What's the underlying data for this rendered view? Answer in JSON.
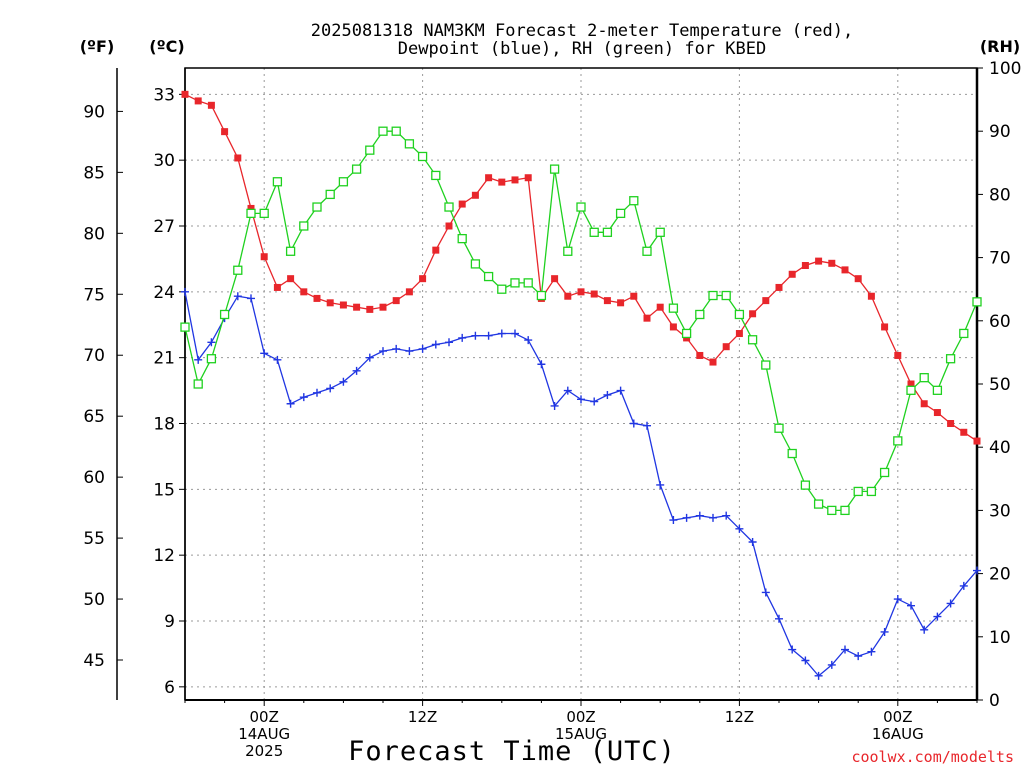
{
  "chart_data": {
    "type": "line",
    "title_line1": "2025081318 NAM3KM Forecast 2-meter Temperature (red),",
    "title_line2": "Dewpoint (blue), RH (green) for KBED",
    "xlabel": "Forecast Time (UTC)",
    "units": {
      "fahrenheit": "(ºF)",
      "celsius": "(ºC)",
      "rh": "(RH)"
    },
    "credit": "coolwx.com/modelts",
    "x_hours": [
      0,
      1,
      2,
      3,
      4,
      5,
      6,
      7,
      8,
      9,
      10,
      11,
      12,
      13,
      14,
      15,
      16,
      17,
      18,
      19,
      20,
      21,
      22,
      23,
      24,
      25,
      26,
      27,
      28,
      29,
      30,
      31,
      32,
      33,
      34,
      35,
      36,
      37,
      38,
      39,
      40,
      41,
      42,
      43,
      44,
      45,
      46,
      47,
      48,
      49,
      50,
      51,
      52,
      53,
      54,
      55,
      56,
      57,
      58,
      59,
      60
    ],
    "x_hours_note": "hours since 2025-08-13 18Z",
    "x_ticks": [
      {
        "hour": 6,
        "lines": [
          "00Z",
          "14AUG",
          "2025"
        ]
      },
      {
        "hour": 18,
        "lines": [
          "12Z"
        ]
      },
      {
        "hour": 30,
        "lines": [
          "00Z",
          "15AUG"
        ]
      },
      {
        "hour": 42,
        "lines": [
          "12Z"
        ]
      },
      {
        "hour": 54,
        "lines": [
          "00Z",
          "16AUG"
        ]
      }
    ],
    "ylim_c": [
      5.4,
      34.2
    ],
    "yticks_c": [
      6,
      9,
      12,
      15,
      18,
      21,
      24,
      27,
      30,
      33
    ],
    "yticks_f": [
      45,
      50,
      55,
      60,
      65,
      70,
      75,
      80,
      85,
      90
    ],
    "ylim_rh": [
      0,
      100
    ],
    "yticks_rh": [
      0,
      10,
      20,
      30,
      40,
      50,
      60,
      70,
      80,
      90,
      100
    ],
    "grid": true,
    "series": [
      {
        "name": "Temperature (red)",
        "axis": "celsius",
        "color": "#e8262b",
        "marker": "filled-square",
        "values": [
          33.0,
          32.7,
          32.5,
          31.3,
          30.1,
          27.8,
          25.6,
          24.2,
          24.6,
          24.0,
          23.7,
          23.5,
          23.4,
          23.3,
          23.2,
          23.3,
          23.6,
          24.0,
          24.6,
          25.9,
          27.0,
          28.0,
          28.4,
          29.2,
          29.0,
          29.1,
          29.2,
          23.7,
          24.6,
          23.8,
          24.0,
          23.9,
          23.6,
          23.5,
          23.8,
          22.8,
          23.3,
          22.4,
          21.9,
          21.1,
          20.8,
          21.5,
          22.1,
          23.0,
          23.6,
          24.2,
          24.8,
          25.2,
          25.4,
          25.3,
          25.0,
          24.6,
          23.8,
          22.4,
          21.1,
          19.8,
          18.9,
          18.5,
          18.0,
          17.6,
          17.2
        ]
      },
      {
        "name": "Dewpoint (blue)",
        "axis": "celsius",
        "color": "#2036e2",
        "marker": "plus",
        "values": [
          24.0,
          20.9,
          21.7,
          22.8,
          23.8,
          23.7,
          21.2,
          20.9,
          18.9,
          19.2,
          19.4,
          19.6,
          19.9,
          20.4,
          21.0,
          21.3,
          21.4,
          21.3,
          21.4,
          21.6,
          21.7,
          21.9,
          22.0,
          22.0,
          22.1,
          22.1,
          21.8,
          20.7,
          18.8,
          19.5,
          19.1,
          19.0,
          19.3,
          19.5,
          18.0,
          17.9,
          15.2,
          13.6,
          13.7,
          13.8,
          13.7,
          13.8,
          13.2,
          12.6,
          10.3,
          9.1,
          7.7,
          7.2,
          6.5,
          7.0,
          7.7,
          7.4,
          7.6,
          8.5,
          10.0,
          9.7,
          8.6,
          9.2,
          9.8,
          10.6,
          11.3
        ]
      },
      {
        "name": "RH (green)",
        "axis": "rh",
        "color": "#1fd11f",
        "marker": "open-square",
        "values": [
          59,
          50,
          54,
          61,
          68,
          77,
          77,
          82,
          71,
          75,
          78,
          80,
          82,
          84,
          87,
          90,
          90,
          88,
          86,
          83,
          78,
          73,
          69,
          67,
          65,
          66,
          66,
          64,
          84,
          71,
          78,
          74,
          74,
          77,
          79,
          71,
          74,
          62,
          58,
          61,
          64,
          64,
          61,
          57,
          53,
          43,
          39,
          34,
          31,
          30,
          30,
          33,
          33,
          36,
          41,
          49,
          51,
          49,
          54,
          58,
          63
        ]
      }
    ]
  }
}
